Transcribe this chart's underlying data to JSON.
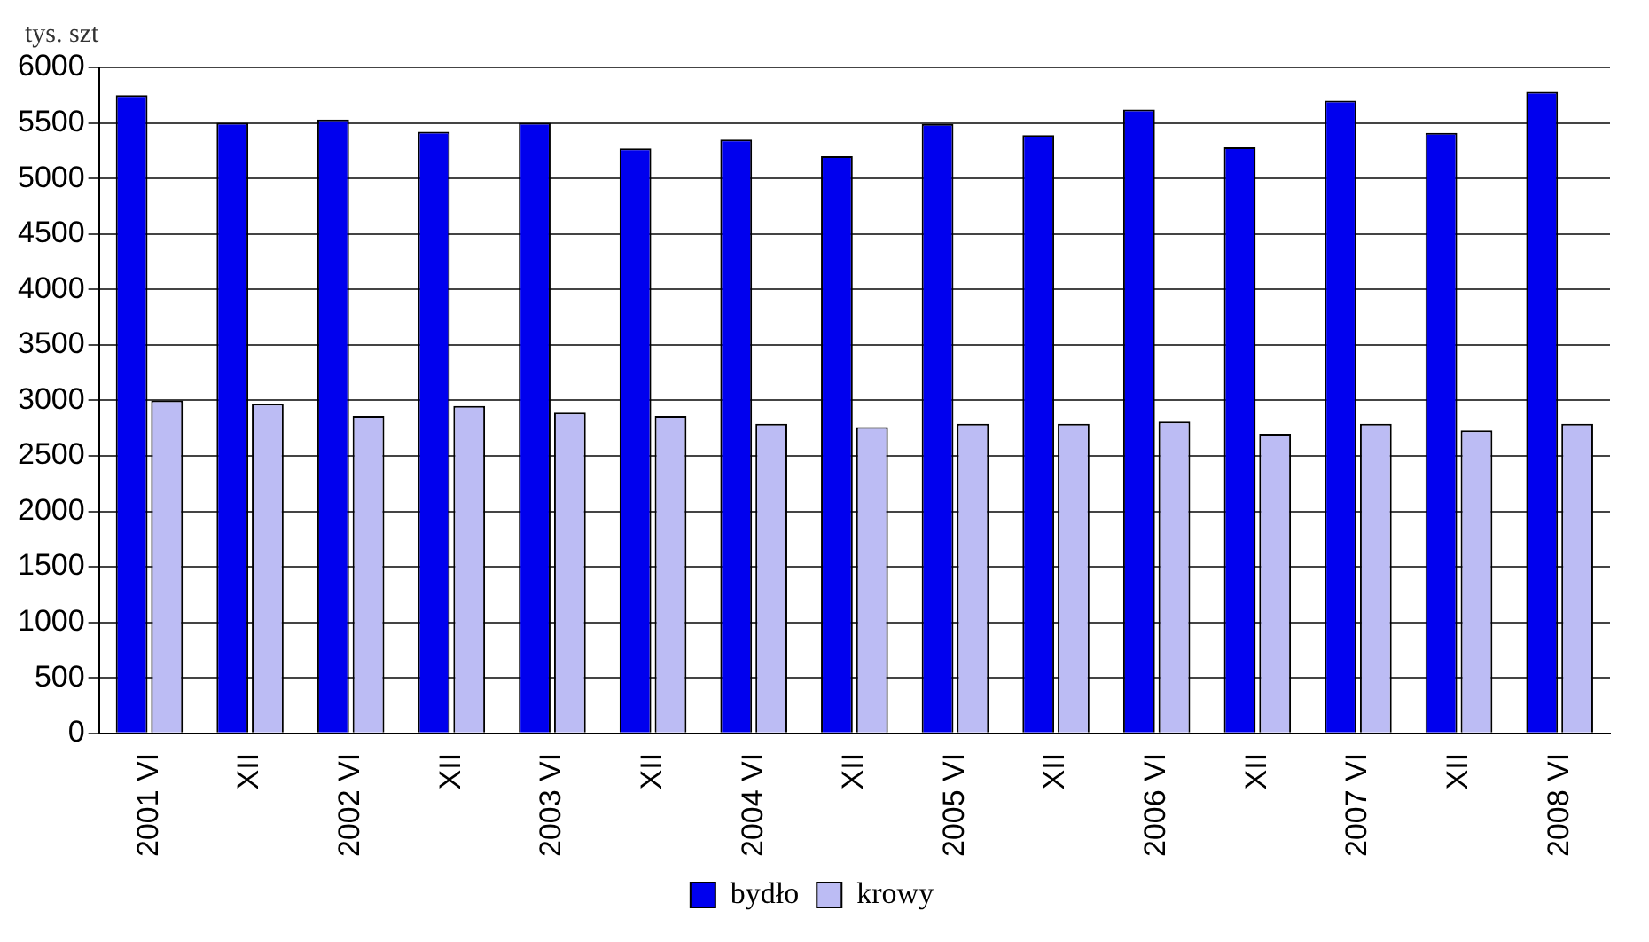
{
  "chart_data": {
    "type": "bar",
    "ylabel": "tys. szt",
    "categories": [
      "2001 VI",
      "XII",
      "2002 VI",
      "XII",
      "2003 VI",
      "XII",
      "2004 VI",
      "XII",
      "2005 VI",
      "XII",
      "2006 VI",
      "XII",
      "2007 VI",
      "XII",
      "2008 VI"
    ],
    "series": [
      {
        "name": "bydło",
        "color": "#0000ee",
        "values": [
          5750,
          5500,
          5530,
          5420,
          5500,
          5270,
          5350,
          5200,
          5490,
          5390,
          5620,
          5280,
          5700,
          5410,
          5780
        ]
      },
      {
        "name": "krowy",
        "color": "#bcbcf4",
        "values": [
          3000,
          2970,
          2860,
          2950,
          2890,
          2860,
          2790,
          2760,
          2790,
          2790,
          2810,
          2700,
          2790,
          2730,
          2790
        ]
      }
    ],
    "ylim": [
      0,
      6000
    ],
    "yticks": [
      0,
      500,
      1000,
      1500,
      2000,
      2500,
      3000,
      3500,
      4000,
      4500,
      5000,
      5500,
      6000
    ],
    "grid": "y",
    "legend": "bottom"
  }
}
